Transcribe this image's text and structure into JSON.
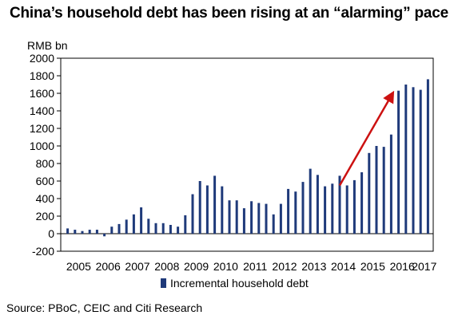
{
  "title": "China’s household debt has been rising at an “alarming” pace",
  "source": "Source: PBoC, CEIC and Citi Research",
  "colors": {
    "bar": "#1f3a7a",
    "arrow": "#cc1111",
    "axis": "#000000"
  },
  "chart_data": {
    "type": "bar",
    "title": "China’s household debt has been rising at an “alarming” pace",
    "ylabel": "RMB bn",
    "xlabel": "",
    "ylim": [
      -200,
      2000
    ],
    "yticks": [
      -200,
      0,
      200,
      400,
      600,
      800,
      1000,
      1200,
      1400,
      1600,
      1800,
      2000
    ],
    "xtick_labels": [
      "2005",
      "2006",
      "2007",
      "2008",
      "2009",
      "2010",
      "2011",
      "2012",
      "2013",
      "2014",
      "2015",
      "2016",
      "2017"
    ],
    "frequency": "quarterly",
    "legend": {
      "position": "bottom",
      "entries": [
        "Incremental household debt"
      ]
    },
    "grid": false,
    "series": [
      {
        "name": "Incremental household debt",
        "values": [
          60,
          45,
          30,
          45,
          45,
          -30,
          80,
          110,
          160,
          220,
          300,
          170,
          120,
          120,
          100,
          80,
          210,
          450,
          600,
          550,
          660,
          540,
          380,
          380,
          290,
          370,
          350,
          340,
          220,
          340,
          510,
          480,
          590,
          740,
          670,
          540,
          570,
          660,
          550,
          610,
          700,
          920,
          1000,
          990,
          1130,
          1630,
          1700,
          1670,
          1640,
          1760
        ]
      }
    ],
    "annotations": [
      {
        "type": "arrow",
        "from": {
          "index": 37,
          "value": 550
        },
        "to": {
          "index": 44,
          "value": 1570
        },
        "color": "#cc1111"
      }
    ]
  }
}
